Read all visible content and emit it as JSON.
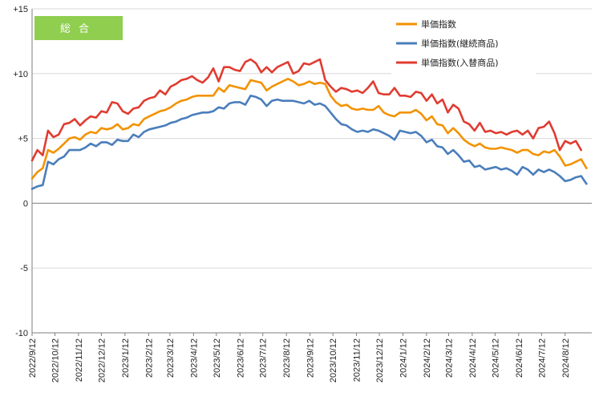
{
  "chart_data": {
    "type": "line",
    "badge": "総合",
    "colors": {
      "badge_bg": "#8fce4f",
      "grid": "#d9d9d9",
      "axis": "#7f7f7f"
    },
    "ylim": [
      -10,
      15
    ],
    "yticks": [
      {
        "value": 15,
        "label": "+15"
      },
      {
        "value": 10,
        "label": "+10"
      },
      {
        "value": 5,
        "label": "+5"
      },
      {
        "value": 0,
        "label": "0"
      },
      {
        "value": -5,
        "label": "-5"
      },
      {
        "value": -10,
        "label": "-10"
      }
    ],
    "x_start": "2022-09-12",
    "x_end": "2024-09-16",
    "x_ticks": [
      {
        "date": "2022-09-12",
        "label": "2022/9/12"
      },
      {
        "date": "2022-10-12",
        "label": "2022/10/12"
      },
      {
        "date": "2022-11-12",
        "label": "2022/11/12"
      },
      {
        "date": "2022-12-12",
        "label": "2022/12/12"
      },
      {
        "date": "2023-01-12",
        "label": "2023/1/12"
      },
      {
        "date": "2023-02-12",
        "label": "2023/2/12"
      },
      {
        "date": "2023-03-12",
        "label": "2023/3/12"
      },
      {
        "date": "2023-04-12",
        "label": "2023/4/12"
      },
      {
        "date": "2023-05-12",
        "label": "2023/5/12"
      },
      {
        "date": "2023-06-12",
        "label": "2023/6/12"
      },
      {
        "date": "2023-07-12",
        "label": "2023/7/12"
      },
      {
        "date": "2023-08-12",
        "label": "2023/8/12"
      },
      {
        "date": "2023-09-12",
        "label": "2023/9/12"
      },
      {
        "date": "2023-10-12",
        "label": "2023/10/12"
      },
      {
        "date": "2023-11-12",
        "label": "2023/11/12"
      },
      {
        "date": "2023-12-12",
        "label": "2023/12/12"
      },
      {
        "date": "2024-01-12",
        "label": "2024/1/12"
      },
      {
        "date": "2024-02-12",
        "label": "2024/2/12"
      },
      {
        "date": "2024-03-12",
        "label": "2024/3/12"
      },
      {
        "date": "2024-04-12",
        "label": "2024/4/12"
      },
      {
        "date": "2024-05-12",
        "label": "2024/5/12"
      },
      {
        "date": "2024-06-12",
        "label": "2024/6/12"
      },
      {
        "date": "2024-07-12",
        "label": "2024/7/12"
      },
      {
        "date": "2024-08-12",
        "label": "2024/8/12"
      }
    ],
    "grid": true,
    "legend_position": "top-right",
    "series": [
      {
        "name": "単価指数",
        "color": "#f39200",
        "values": [
          1.9,
          2.4,
          2.7,
          4.1,
          3.9,
          4.2,
          4.6,
          5.0,
          5.1,
          4.9,
          5.3,
          5.5,
          5.4,
          5.8,
          5.7,
          5.8,
          6.1,
          5.7,
          5.8,
          6.1,
          6.0,
          6.5,
          6.7,
          6.9,
          7.1,
          7.2,
          7.4,
          7.7,
          7.9,
          8.0,
          8.2,
          8.3,
          8.3,
          8.3,
          8.3,
          8.9,
          8.6,
          9.1,
          9.0,
          8.9,
          8.8,
          9.5,
          9.4,
          9.3,
          8.7,
          9.0,
          9.2,
          9.4,
          9.6,
          9.4,
          9.1,
          9.2,
          9.4,
          9.2,
          9.3,
          9.2,
          8.3,
          7.8,
          7.5,
          7.6,
          7.3,
          7.2,
          7.3,
          7.2,
          7.2,
          7.5,
          7.0,
          6.8,
          6.7,
          7.0,
          7.0,
          7.0,
          7.2,
          6.9,
          6.4,
          6.7,
          6.1,
          6.0,
          5.4,
          5.8,
          5.4,
          4.9,
          4.6,
          4.4,
          4.6,
          4.3,
          4.2,
          4.2,
          4.3,
          4.2,
          4.1,
          3.9,
          4.1,
          4.1,
          3.8,
          3.7,
          4.0,
          3.9,
          4.1,
          3.6,
          2.9,
          3.0,
          3.2,
          3.4,
          2.7
        ]
      },
      {
        "name": "単価指数(継続商品)",
        "color": "#4a7ebb",
        "values": [
          1.1,
          1.3,
          1.4,
          3.2,
          3.0,
          3.4,
          3.6,
          4.1,
          4.1,
          4.1,
          4.3,
          4.6,
          4.4,
          4.7,
          4.7,
          4.5,
          4.9,
          4.8,
          4.8,
          5.3,
          5.1,
          5.5,
          5.7,
          5.8,
          5.9,
          6.0,
          6.2,
          6.3,
          6.5,
          6.6,
          6.8,
          6.9,
          7.0,
          7.0,
          7.1,
          7.4,
          7.3,
          7.7,
          7.8,
          7.8,
          7.6,
          8.3,
          8.2,
          8.0,
          7.5,
          7.9,
          8.0,
          7.9,
          7.9,
          7.9,
          7.8,
          7.7,
          7.9,
          7.6,
          7.7,
          7.5,
          7.0,
          6.5,
          6.1,
          6.0,
          5.7,
          5.5,
          5.6,
          5.5,
          5.7,
          5.6,
          5.4,
          5.2,
          4.9,
          5.6,
          5.5,
          5.4,
          5.5,
          5.2,
          4.7,
          4.9,
          4.4,
          4.3,
          3.8,
          4.1,
          3.7,
          3.2,
          3.3,
          2.8,
          2.9,
          2.6,
          2.7,
          2.8,
          2.6,
          2.7,
          2.5,
          2.2,
          2.8,
          2.6,
          2.2,
          2.6,
          2.4,
          2.6,
          2.4,
          2.1,
          1.7,
          1.8,
          2.0,
          2.1,
          1.5
        ]
      },
      {
        "name": "単価指数(入替商品)",
        "color": "#e03c31",
        "values": [
          3.3,
          4.1,
          3.7,
          5.6,
          5.1,
          5.3,
          6.1,
          6.2,
          6.5,
          6.0,
          6.4,
          6.7,
          6.6,
          7.1,
          7.0,
          7.8,
          7.7,
          7.1,
          6.9,
          7.3,
          7.4,
          7.9,
          8.1,
          8.2,
          8.7,
          8.4,
          9.0,
          9.2,
          9.5,
          9.6,
          9.8,
          9.5,
          9.3,
          9.7,
          10.4,
          9.4,
          10.5,
          10.5,
          10.3,
          10.2,
          10.9,
          11.1,
          10.8,
          10.1,
          10.5,
          10.1,
          10.5,
          10.7,
          10.9,
          10.0,
          10.2,
          10.8,
          10.7,
          10.9,
          11.1,
          9.5,
          9.0,
          8.6,
          8.9,
          8.8,
          8.6,
          8.7,
          8.5,
          8.9,
          9.4,
          8.5,
          8.4,
          8.4,
          8.9,
          8.3,
          8.3,
          8.2,
          8.6,
          8.5,
          7.9,
          8.4,
          7.7,
          8.0,
          7.0,
          7.6,
          7.3,
          6.3,
          6.1,
          5.6,
          6.2,
          5.5,
          5.6,
          5.4,
          5.5,
          5.3,
          5.5,
          5.6,
          5.3,
          5.6,
          5.0,
          5.8,
          5.9,
          6.3,
          5.4,
          4.1,
          4.8,
          4.6,
          4.8,
          4.1
        ]
      }
    ]
  }
}
